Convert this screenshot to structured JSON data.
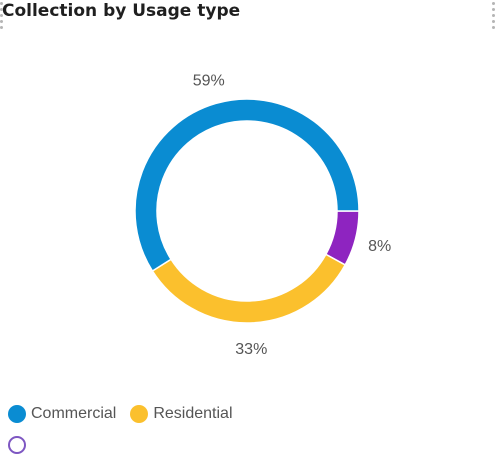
{
  "card": {
    "title": "Collection by Usage type"
  },
  "icons": {
    "drag_handle": "drag-dots-icon"
  },
  "chart_data": {
    "type": "pie",
    "variant": "donut",
    "title": "Collection by Usage type",
    "slices": [
      {
        "name": "Commercial",
        "value": 59,
        "label": "59%",
        "color": "#0a8cd2"
      },
      {
        "name": "Residential",
        "value": 33,
        "label": "33%",
        "color": "#fbc02d"
      },
      {
        "name": "",
        "value": 8,
        "label": "8%",
        "color": "#8e24c0"
      }
    ],
    "legend": {
      "placement": "bottom-left",
      "entries": [
        "Commercial",
        "Residential"
      ]
    },
    "grid": false
  }
}
